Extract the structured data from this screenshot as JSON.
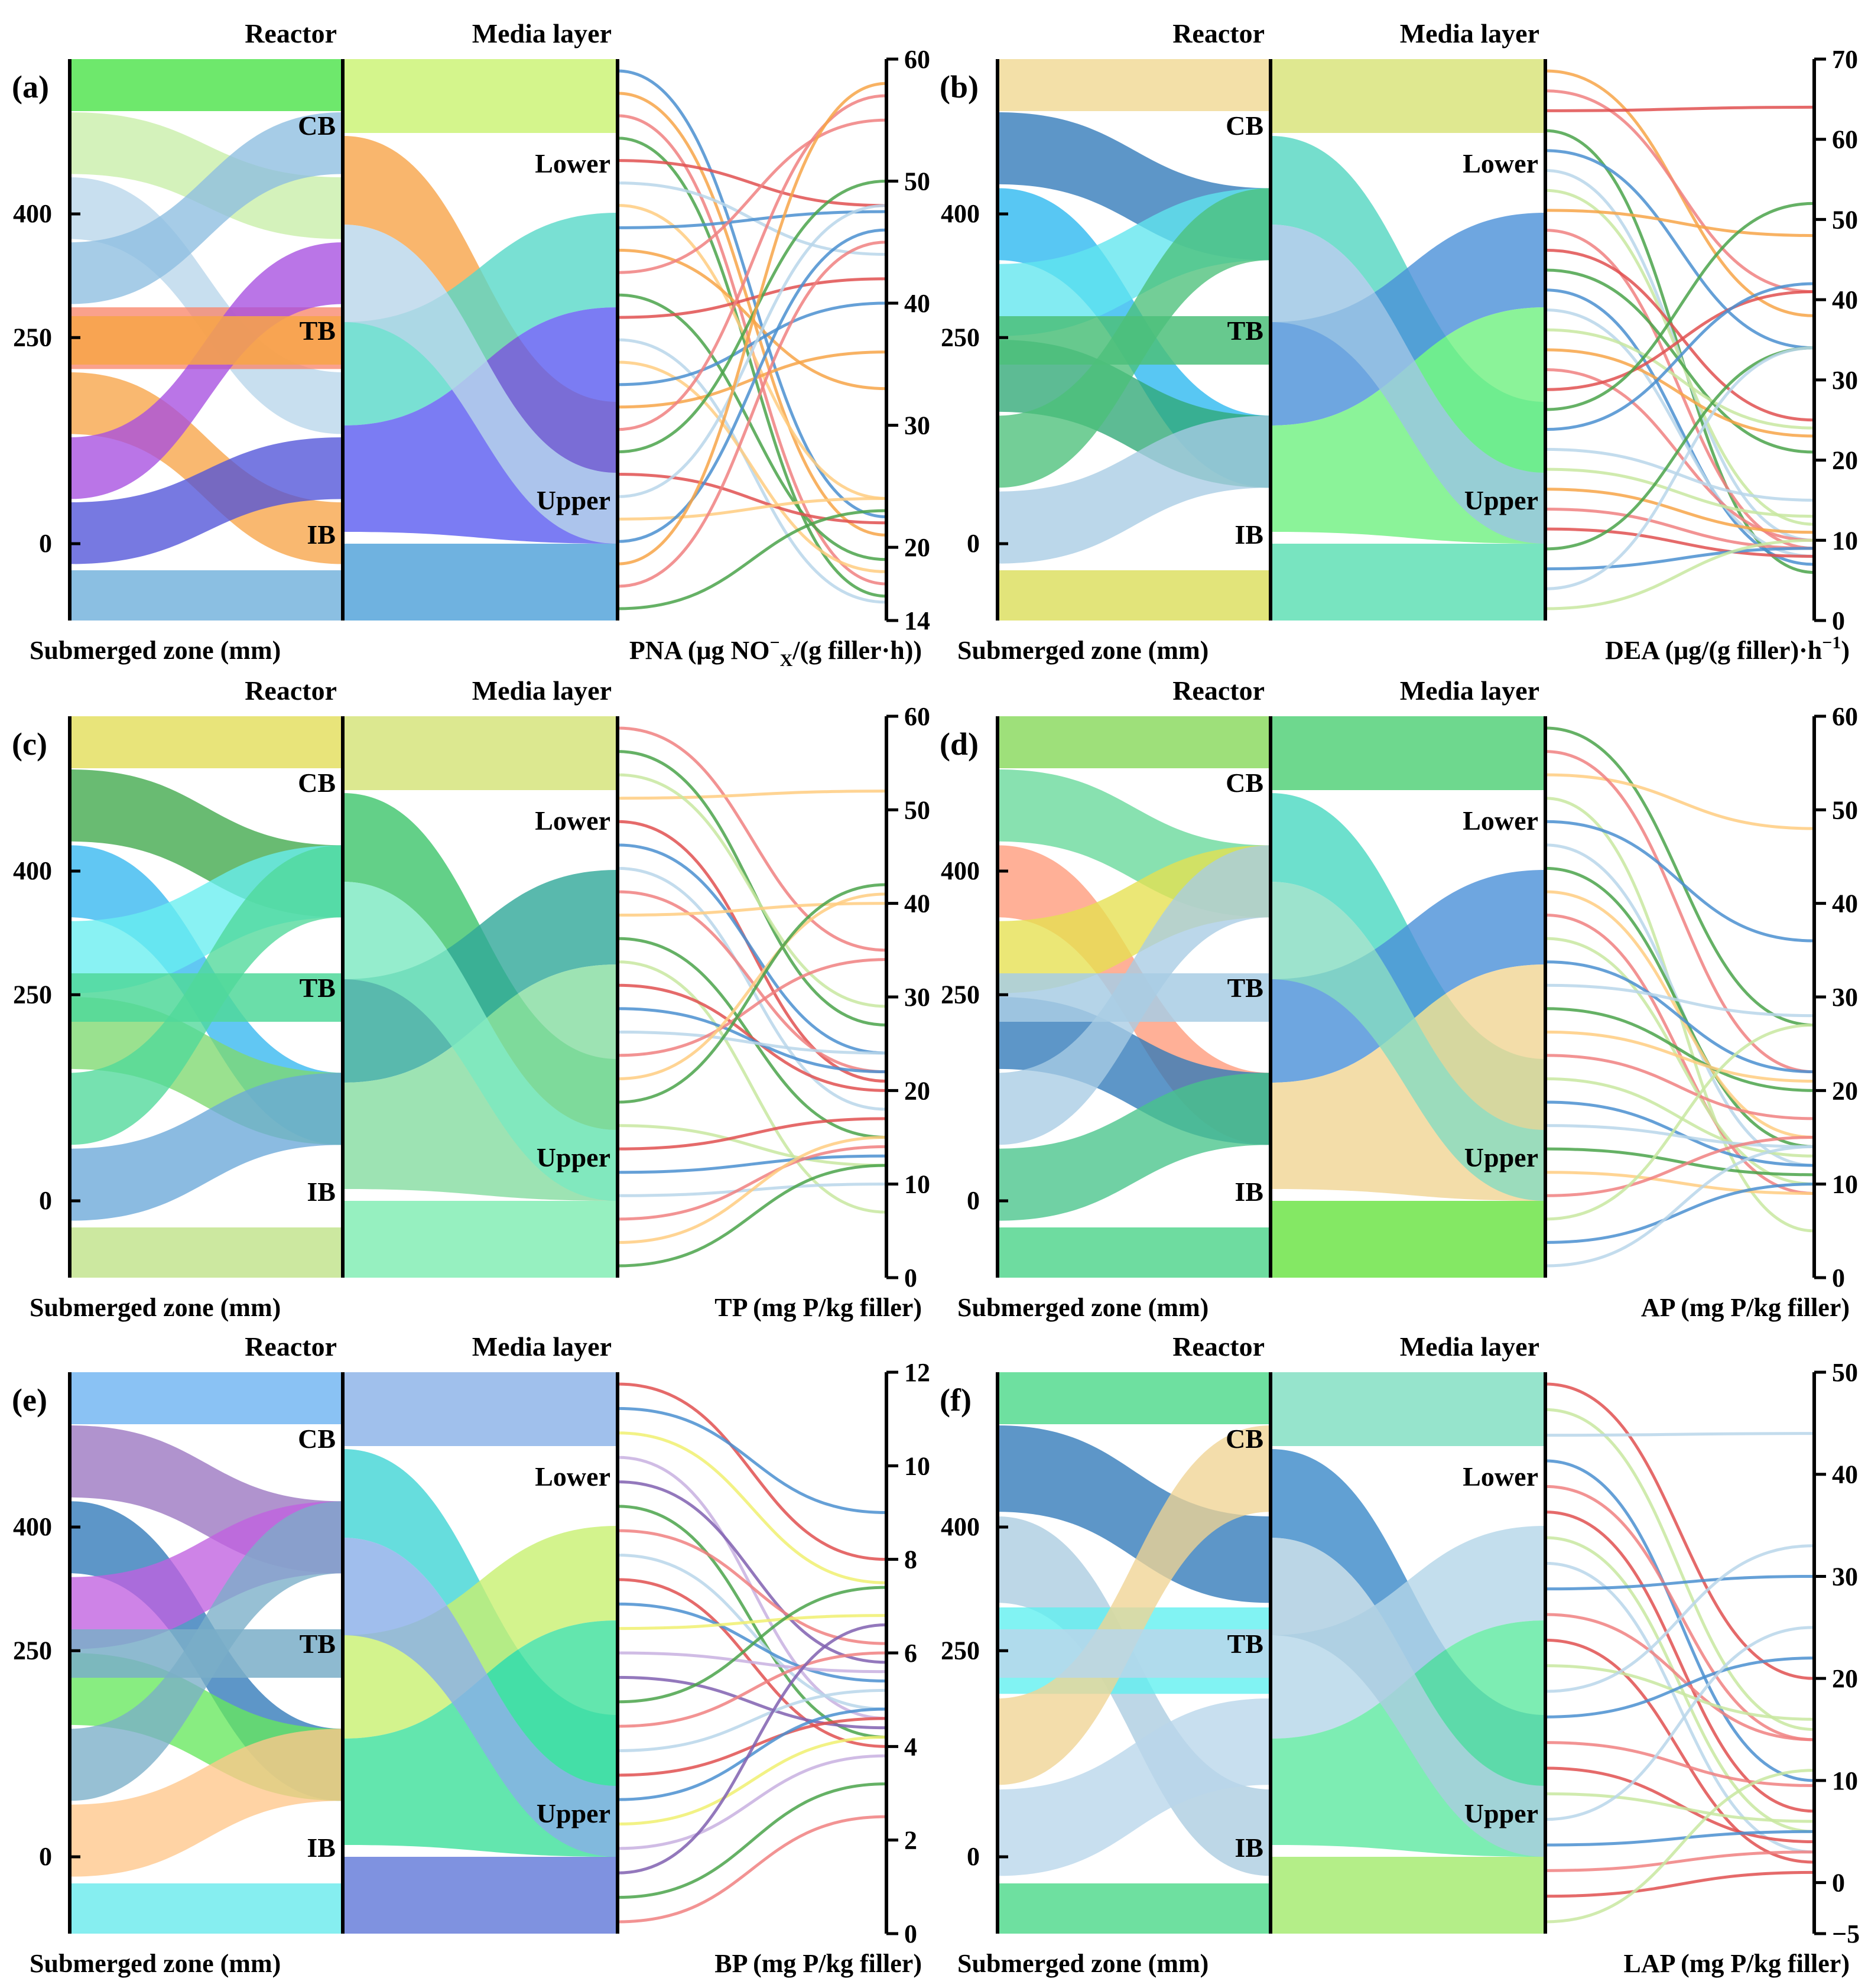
{
  "figure": {
    "panels": [
      {
        "id": "a",
        "panel_label": "(a)",
        "header_reactor": "Reactor",
        "header_media": "Media layer",
        "left_axis_title": "Submerged zone (mm)",
        "right_axis_title": "PNA (μg NO",
        "right_axis_sub": "X",
        "right_axis_sup": "−",
        "right_axis_tail": "/(g filler·h))",
        "left_ticks": [
          "400",
          "250",
          "0"
        ],
        "reactor_labels": [
          "CB",
          "TB",
          "IB"
        ],
        "media_labels": [
          "Lower",
          "Upper"
        ],
        "right_ticks": [
          "60",
          "50",
          "40",
          "30",
          "20",
          "14"
        ],
        "colors": {
          "top_block": "#6ee86c",
          "bottom_block": "#8bbfe2",
          "media_top": "#d4f58c",
          "media_bottom": "#6fb2e0",
          "ribbons": [
            "#c8eea8",
            "#b9d6ea",
            "#8dbee0",
            "#f9876b",
            "#f7a448",
            "#a64ee0",
            "#5153d8"
          ],
          "media_ribbons": [
            "#f7a448",
            "#58d8c8",
            "#5a5bf0",
            "#b9d6ea"
          ],
          "lines": [
            "#4a8fd0",
            "#f7a448",
            "#f08080",
            "#4aa34a",
            "#e05050",
            "#b9d6ea",
            "#ffcc80"
          ]
        }
      },
      {
        "id": "b",
        "panel_label": "(b)",
        "header_reactor": "Reactor",
        "header_media": "Media layer",
        "left_axis_title": "Submerged zone (mm)",
        "right_axis_title": "DEA (μg/(g filler)·h",
        "right_axis_sub": "",
        "right_axis_sup": "−1",
        "right_axis_tail": ")",
        "left_ticks": [
          "400",
          "250",
          "0"
        ],
        "reactor_labels": [
          "CB",
          "TB",
          "IB"
        ],
        "media_labels": [
          "Lower",
          "Upper"
        ],
        "right_ticks": [
          "70",
          "60",
          "50",
          "40",
          "30",
          "20",
          "10",
          "0"
        ],
        "colors": {
          "top_block": "#f3e0a8",
          "bottom_block": "#e2e47a",
          "media_top": "#dfe890",
          "media_bottom": "#78e4c0",
          "ribbons": [
            "#2f78b8",
            "#29b7f0",
            "#60e6ee",
            "#2fa876",
            "#4cc07a",
            "#a8cce4"
          ],
          "media_ribbons": [
            "#52d6c0",
            "#4a90d8",
            "#6ef080",
            "#9ac4e4"
          ],
          "lines": [
            "#f7a448",
            "#f08080",
            "#e05050",
            "#4aa34a",
            "#4a8fd0",
            "#b9d6ea",
            "#c8e8a0"
          ]
        }
      },
      {
        "id": "c",
        "panel_label": "(c)",
        "header_reactor": "Reactor",
        "header_media": "Media layer",
        "left_axis_title": "Submerged zone (mm)",
        "right_axis_title": "TP (mg P/kg filler)",
        "right_axis_sub": "",
        "right_axis_sup": "",
        "right_axis_tail": "",
        "left_ticks": [
          "400",
          "250",
          "0"
        ],
        "reactor_labels": [
          "CB",
          "TB",
          "IB"
        ],
        "media_labels": [
          "Lower",
          "Upper"
        ],
        "right_ticks": [
          "60",
          "50",
          "40",
          "30",
          "20",
          "10",
          "0"
        ],
        "colors": {
          "top_block": "#e8e47a",
          "bottom_block": "#cce8a0",
          "media_top": "#dce890",
          "media_bottom": "#96f0c0",
          "ribbons": [
            "#3fa84a",
            "#35b7f0",
            "#68eef0",
            "#7ed870",
            "#50d89a",
            "#6aa8d8"
          ],
          "media_ribbons": [
            "#3cc46a",
            "#2fa898",
            "#84dca0",
            "#7ae8c0"
          ],
          "lines": [
            "#f08080",
            "#ffcc80",
            "#4aa34a",
            "#c8e8a0",
            "#e05050",
            "#4a8fd0",
            "#b9d6ea"
          ]
        }
      },
      {
        "id": "d",
        "panel_label": "(d)",
        "header_reactor": "Reactor",
        "header_media": "Media layer",
        "left_axis_title": "Submerged zone (mm)",
        "right_axis_title": "AP (mg P/kg filler)",
        "right_axis_sub": "",
        "right_axis_sup": "",
        "right_axis_tail": "",
        "left_ticks": [
          "400",
          "250",
          "0"
        ],
        "reactor_labels": [
          "CB",
          "TB",
          "IB"
        ],
        "media_labels": [
          "Lower",
          "Upper"
        ],
        "right_ticks": [
          "60",
          "50",
          "40",
          "30",
          "20",
          "10",
          "0"
        ],
        "colors": {
          "top_block": "#9ee07a",
          "bottom_block": "#6edca0",
          "media_top": "#6ed88e",
          "media_bottom": "#84e864",
          "ribbons": [
            "#66d89a",
            "#ff9a7a",
            "#e6e050",
            "#2f78b8",
            "#a8cce4",
            "#48c48a"
          ],
          "media_ribbons": [
            "#48d8c0",
            "#4a90d8",
            "#f0d494",
            "#84dcc0"
          ],
          "lines": [
            "#4aa34a",
            "#ffcc80",
            "#f08080",
            "#c8e8a0",
            "#4a8fd0",
            "#b9d6ea"
          ]
        }
      },
      {
        "id": "e",
        "panel_label": "(e)",
        "header_reactor": "Reactor",
        "header_media": "Media layer",
        "left_axis_title": "Submerged zone (mm)",
        "right_axis_title": "BP (mg P/kg filler)",
        "right_axis_sub": "",
        "right_axis_sup": "",
        "right_axis_tail": "",
        "left_ticks": [
          "400",
          "250",
          "0"
        ],
        "reactor_labels": [
          "CB",
          "TB",
          "IB"
        ],
        "media_labels": [
          "Lower",
          "Upper"
        ],
        "right_ticks": [
          "12",
          "10",
          "8",
          "6",
          "4",
          "2",
          "0"
        ],
        "colors": {
          "top_block": "#8ac2f4",
          "bottom_block": "#86eef0",
          "media_top": "#a0c0ec",
          "media_bottom": "#7f92e0",
          "ribbons": [
            "#9a74c0",
            "#2f78b8",
            "#c060e0",
            "#66e85e",
            "#7aaec8",
            "#ffc68a"
          ],
          "media_ribbons": [
            "#40d4d4",
            "#c8f070",
            "#3ce09a",
            "#88aee8"
          ],
          "lines": [
            "#e05050",
            "#4a8fd0",
            "#f0f070",
            "#c8b0e0",
            "#8060b0",
            "#4aa34a",
            "#f08080",
            "#b9d6ea"
          ]
        }
      },
      {
        "id": "f",
        "panel_label": "(f)",
        "header_reactor": "Reactor",
        "header_media": "Media layer",
        "left_axis_title": "Submerged zone (mm)",
        "right_axis_title": "LAP (mg P/kg filler)",
        "right_axis_sub": "",
        "right_axis_sup": "",
        "right_axis_tail": "",
        "left_ticks": [
          "400",
          "250",
          "0"
        ],
        "reactor_labels": [
          "CB",
          "TB",
          "IB"
        ],
        "media_labels": [
          "Lower",
          "Upper"
        ],
        "right_ticks": [
          "50",
          "40",
          "30",
          "20",
          "10",
          "0",
          "−5"
        ],
        "colors": {
          "top_block": "#6ee0a0",
          "bottom_block": "#6ee0a0",
          "media_top": "#96e4cc",
          "media_bottom": "#b4ee88",
          "ribbons": [
            "#2f78b8",
            "#aacce0",
            "#5ef0f0",
            "#f0d494",
            "#b9d6ea"
          ],
          "media_ribbons": [
            "#3a88c8",
            "#b4d6e8",
            "#5ce8a0",
            "#aacce0"
          ],
          "lines": [
            "#e05050",
            "#c8e8a0",
            "#b9d6ea",
            "#4a8fd0",
            "#f08080"
          ]
        }
      }
    ]
  },
  "chart_data": [
    {
      "type": "parallel_sets",
      "panel": "(a)",
      "axes": [
        "Submerged zone (mm)",
        "Reactor",
        "Media layer",
        "PNA (μg NOX−/(g filler·h))"
      ],
      "left_ticks": [
        0,
        250,
        400
      ],
      "reactor_categories": [
        "CB",
        "TB",
        "IB"
      ],
      "media_categories": [
        "Lower",
        "Upper"
      ],
      "right_axis_range": [
        14,
        60
      ],
      "right_ticks": [
        14,
        20,
        30,
        40,
        50,
        60
      ],
      "line_values": [
        [
          58.5,
          22.5
        ],
        [
          56,
          21
        ],
        [
          55,
          17
        ],
        [
          53,
          16
        ],
        [
          52,
          48
        ],
        [
          51,
          44
        ],
        [
          49,
          24
        ],
        [
          47.5,
          47.5
        ],
        [
          45,
          33
        ],
        [
          44,
          55
        ],
        [
          41,
          19
        ],
        [
          39,
          42
        ],
        [
          36,
          15.5
        ],
        [
          33,
          18
        ],
        [
          31,
          40
        ],
        [
          30,
          36
        ],
        [
          28,
          57
        ],
        [
          26,
          50
        ],
        [
          25,
          22
        ],
        [
          24,
          48
        ],
        [
          23,
          24
        ],
        [
          21,
          46
        ],
        [
          20,
          58
        ],
        [
          18,
          45
        ],
        [
          15.5,
          23
        ]
      ]
    },
    {
      "type": "parallel_sets",
      "panel": "(b)",
      "axes": [
        "Submerged zone (mm)",
        "Reactor",
        "Media layer",
        "DEA (μg/(g filler)·h−1)"
      ],
      "left_ticks": [
        0,
        250,
        400
      ],
      "reactor_categories": [
        "CB",
        "TB",
        "IB"
      ],
      "media_categories": [
        "Lower",
        "Upper"
      ],
      "right_axis_range": [
        0,
        70
      ],
      "right_ticks": [
        0,
        10,
        20,
        30,
        40,
        50,
        60,
        70
      ],
      "line_values": [
        [
          68,
          38
        ],
        [
          66,
          41
        ],
        [
          65,
          64
        ],
        [
          63,
          6
        ],
        [
          61,
          34
        ],
        [
          59,
          10
        ],
        [
          57,
          12
        ],
        [
          53,
          48
        ],
        [
          51,
          9
        ],
        [
          47,
          25
        ],
        [
          44,
          21
        ],
        [
          42,
          7
        ],
        [
          38,
          8
        ],
        [
          26,
          24
        ],
        [
          25,
          23
        ],
        [
          24,
          10
        ],
        [
          23,
          41
        ],
        [
          22,
          52
        ],
        [
          20,
          42
        ],
        [
          19,
          15
        ],
        [
          17,
          13
        ],
        [
          15,
          11
        ],
        [
          12,
          9
        ],
        [
          10,
          8
        ],
        [
          8,
          34
        ],
        [
          6,
          9
        ],
        [
          4,
          34
        ],
        [
          2,
          10
        ]
      ]
    },
    {
      "type": "parallel_sets",
      "panel": "(c)",
      "axes": [
        "Submerged zone (mm)",
        "Reactor",
        "Media layer",
        "TP (mg P/kg filler)"
      ],
      "left_ticks": [
        0,
        250,
        400
      ],
      "reactor_categories": [
        "CB",
        "TB",
        "IB"
      ],
      "media_categories": [
        "Lower",
        "Upper"
      ],
      "right_axis_range": [
        0,
        60
      ],
      "right_ticks": [
        0,
        10,
        20,
        30,
        40,
        50,
        60
      ],
      "line_values": [
        [
          59,
          35
        ],
        [
          53,
          52
        ],
        [
          56,
          27
        ],
        [
          54,
          29
        ],
        [
          51,
          21
        ],
        [
          50,
          24
        ],
        [
          48,
          18
        ],
        [
          46,
          22
        ],
        [
          45,
          40
        ],
        [
          42,
          15
        ],
        [
          40,
          7
        ],
        [
          38,
          20
        ],
        [
          25,
          22
        ],
        [
          23,
          24
        ],
        [
          21,
          34
        ],
        [
          20,
          41
        ],
        [
          18,
          42
        ],
        [
          16,
          12
        ],
        [
          13,
          17
        ],
        [
          11,
          13
        ],
        [
          9,
          10
        ],
        [
          7,
          14
        ],
        [
          5,
          15
        ],
        [
          2,
          12
        ]
      ]
    },
    {
      "type": "parallel_sets",
      "panel": "(d)",
      "axes": [
        "Submerged zone (mm)",
        "Reactor",
        "Media layer",
        "AP (mg P/kg filler)"
      ],
      "left_ticks": [
        0,
        250,
        400
      ],
      "reactor_categories": [
        "CB",
        "TB",
        "IB"
      ],
      "media_categories": [
        "Lower",
        "Upper"
      ],
      "right_axis_range": [
        0,
        60
      ],
      "right_ticks": [
        0,
        10,
        20,
        30,
        40,
        50,
        60
      ],
      "line_values": [
        [
          59,
          27
        ],
        [
          53,
          48
        ],
        [
          55,
          22
        ],
        [
          51,
          5
        ],
        [
          47,
          36
        ],
        [
          46,
          12
        ],
        [
          44,
          14
        ],
        [
          42,
          15
        ],
        [
          40,
          9
        ],
        [
          38,
          10
        ],
        [
          36,
          22
        ],
        [
          34,
          28
        ],
        [
          23,
          20
        ],
        [
          22,
          21
        ],
        [
          20,
          17
        ],
        [
          19,
          13
        ],
        [
          16,
          12
        ],
        [
          14,
          14
        ],
        [
          13,
          11
        ],
        [
          10,
          9
        ],
        [
          7,
          15
        ],
        [
          6,
          27
        ],
        [
          4,
          10
        ],
        [
          2,
          14
        ]
      ]
    },
    {
      "type": "parallel_sets",
      "panel": "(e)",
      "axes": [
        "Submerged zone (mm)",
        "Reactor",
        "Media layer",
        "BP (mg P/kg filler)"
      ],
      "left_ticks": [
        0,
        250,
        400
      ],
      "reactor_categories": [
        "CB",
        "TB",
        "IB"
      ],
      "media_categories": [
        "Lower",
        "Upper"
      ],
      "right_axis_range": [
        0,
        12
      ],
      "right_ticks": [
        0,
        2,
        4,
        6,
        8,
        10,
        12
      ],
      "line_values": [
        [
          11.5,
          8
        ],
        [
          11.2,
          9
        ],
        [
          10.9,
          7.5
        ],
        [
          10.6,
          4.6
        ],
        [
          10.3,
          5.8
        ],
        [
          10,
          4.2
        ],
        [
          9.7,
          6.2
        ],
        [
          9.4,
          4.8
        ],
        [
          9,
          4
        ],
        [
          8.6,
          5.4
        ],
        [
          4,
          6.8
        ],
        [
          3.7,
          5.6
        ],
        [
          3.4,
          4.4
        ],
        [
          3.1,
          7.4
        ],
        [
          2.8,
          6
        ],
        [
          2.5,
          5.2
        ],
        [
          2.2,
          4.6
        ],
        [
          1.9,
          4.8
        ],
        [
          1.6,
          4.2
        ],
        [
          1.3,
          3.8
        ],
        [
          1,
          6.6
        ],
        [
          0.7,
          3.2
        ],
        [
          0.3,
          2.5
        ]
      ]
    },
    {
      "type": "parallel_sets",
      "panel": "(f)",
      "axes": [
        "Submerged zone (mm)",
        "Reactor",
        "Media layer",
        "LAP (mg P/kg filler)"
      ],
      "left_ticks": [
        0,
        250,
        400
      ],
      "reactor_categories": [
        "CB",
        "TB",
        "IB"
      ],
      "media_categories": [
        "Lower",
        "Upper"
      ],
      "right_axis_range": [
        -5,
        50
      ],
      "right_ticks": [
        -5,
        0,
        10,
        20,
        30,
        40,
        50
      ],
      "line_values": [
        [
          48,
          20
        ],
        [
          46,
          15
        ],
        [
          44,
          44
        ],
        [
          42,
          10
        ],
        [
          40,
          14
        ],
        [
          38,
          7
        ],
        [
          36,
          5
        ],
        [
          34,
          3
        ],
        [
          32,
          30
        ],
        [
          16,
          14
        ],
        [
          15,
          2
        ],
        [
          14,
          16
        ],
        [
          13,
          33
        ],
        [
          11,
          22
        ],
        [
          9.5,
          9.5
        ],
        [
          8,
          4
        ],
        [
          6,
          6
        ],
        [
          4,
          25
        ],
        [
          2,
          5
        ],
        [
          0,
          3
        ],
        [
          -2,
          1
        ],
        [
          -4,
          11
        ]
      ]
    }
  ]
}
